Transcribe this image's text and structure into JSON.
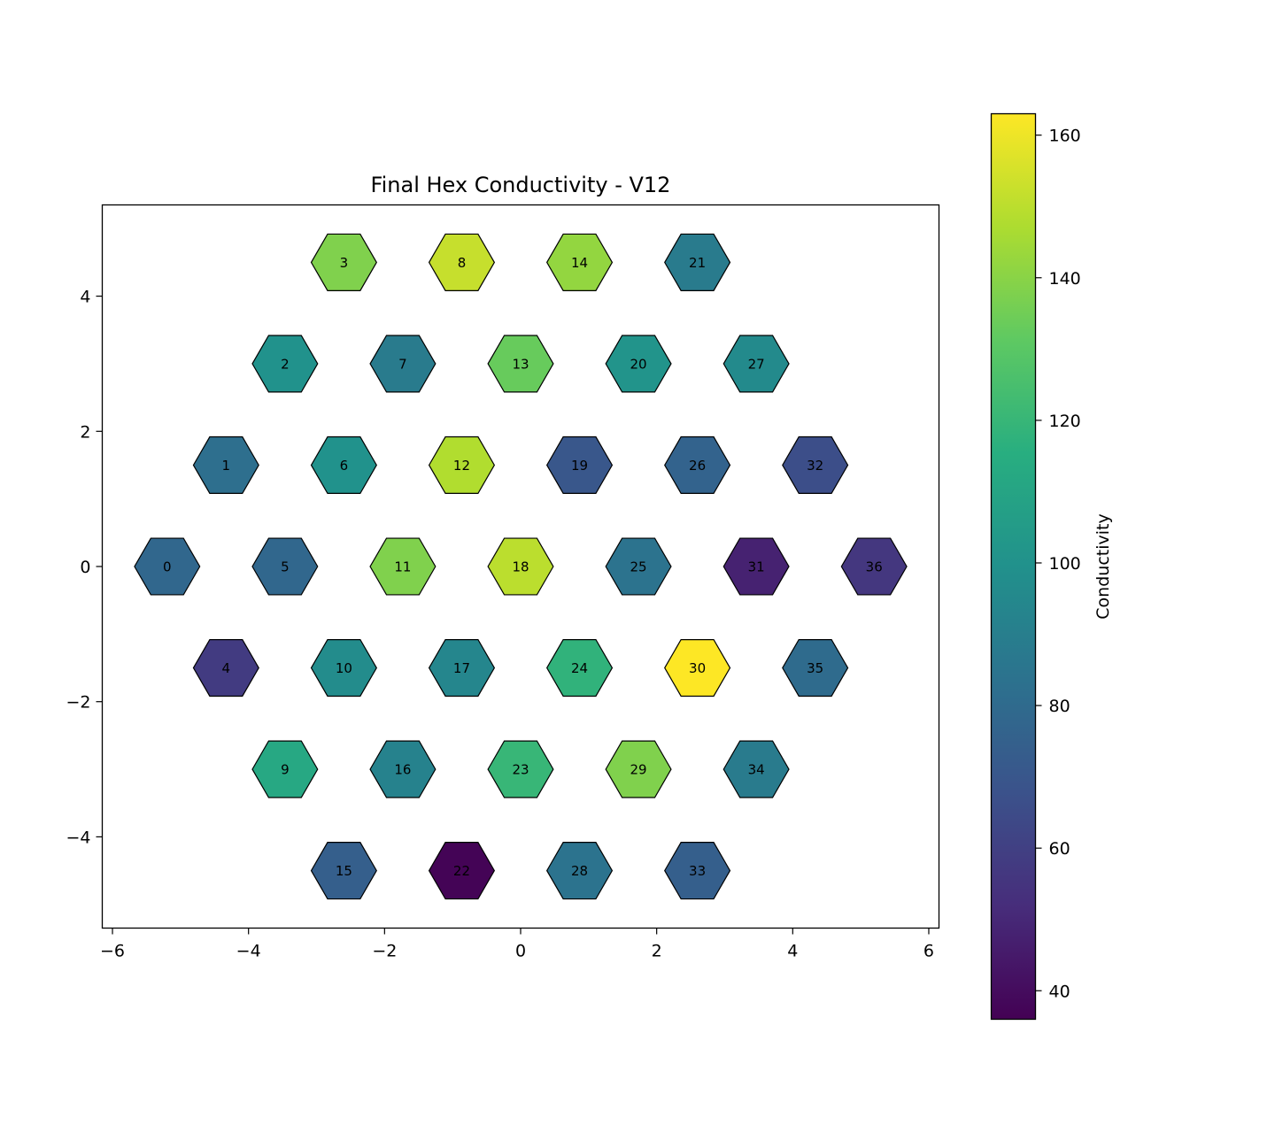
{
  "chart_data": {
    "type": "heatmap",
    "title": "Final Hex Conductivity - V12",
    "xlabel": "",
    "ylabel": "",
    "xlim": [
      -6.15,
      6.15
    ],
    "ylim": [
      -5.35,
      5.35
    ],
    "x_ticks": [
      -6,
      -4,
      -2,
      0,
      2,
      4,
      6
    ],
    "x_tick_labels": [
      "−6",
      "−4",
      "−2",
      "0",
      "2",
      "4",
      "6"
    ],
    "y_ticks": [
      -4,
      -2,
      0,
      2,
      4
    ],
    "y_tick_labels": [
      "−4",
      "−2",
      "0",
      "2",
      "4"
    ],
    "colorbar": {
      "label": "Conductivity",
      "colormap": "viridis",
      "vmin": 36,
      "vmax": 163,
      "ticks": [
        40,
        60,
        80,
        100,
        120,
        140,
        160
      ],
      "tick_labels": [
        "40",
        "60",
        "80",
        "100",
        "120",
        "140",
        "160"
      ]
    },
    "cells": [
      {
        "id": "0",
        "x": -5.196,
        "y": 0.0,
        "value": 78
      },
      {
        "id": "1",
        "x": -4.33,
        "y": 1.5,
        "value": 82
      },
      {
        "id": "2",
        "x": -3.464,
        "y": 3.0,
        "value": 100
      },
      {
        "id": "3",
        "x": -2.598,
        "y": 4.5,
        "value": 138
      },
      {
        "id": "4",
        "x": -4.33,
        "y": -1.5,
        "value": 58
      },
      {
        "id": "5",
        "x": -3.464,
        "y": 0.0,
        "value": 78
      },
      {
        "id": "6",
        "x": -2.598,
        "y": 1.5,
        "value": 100
      },
      {
        "id": "7",
        "x": -1.732,
        "y": 3.0,
        "value": 88
      },
      {
        "id": "8",
        "x": -0.866,
        "y": 4.5,
        "value": 152
      },
      {
        "id": "9",
        "x": -3.464,
        "y": -3.0,
        "value": 112
      },
      {
        "id": "10",
        "x": -2.598,
        "y": -1.5,
        "value": 97
      },
      {
        "id": "11",
        "x": -1.732,
        "y": 0.0,
        "value": 138
      },
      {
        "id": "12",
        "x": -0.866,
        "y": 1.5,
        "value": 148
      },
      {
        "id": "13",
        "x": 0.0,
        "y": 3.0,
        "value": 133
      },
      {
        "id": "14",
        "x": 0.866,
        "y": 4.5,
        "value": 142
      },
      {
        "id": "15",
        "x": -2.598,
        "y": -4.5,
        "value": 74
      },
      {
        "id": "16",
        "x": -1.732,
        "y": -3.0,
        "value": 92
      },
      {
        "id": "17",
        "x": -0.866,
        "y": -1.5,
        "value": 94
      },
      {
        "id": "18",
        "x": 0.0,
        "y": 0.0,
        "value": 150
      },
      {
        "id": "19",
        "x": 0.866,
        "y": 1.5,
        "value": 70
      },
      {
        "id": "20",
        "x": 1.732,
        "y": 3.0,
        "value": 101
      },
      {
        "id": "21",
        "x": 2.598,
        "y": 4.5,
        "value": 88
      },
      {
        "id": "22",
        "x": -0.866,
        "y": -4.5,
        "value": 37
      },
      {
        "id": "23",
        "x": 0.0,
        "y": -3.0,
        "value": 120
      },
      {
        "id": "24",
        "x": 0.866,
        "y": -1.5,
        "value": 118
      },
      {
        "id": "25",
        "x": 1.732,
        "y": 0.0,
        "value": 84
      },
      {
        "id": "26",
        "x": 2.598,
        "y": 1.5,
        "value": 76
      },
      {
        "id": "27",
        "x": 3.464,
        "y": 3.0,
        "value": 96
      },
      {
        "id": "28",
        "x": 0.866,
        "y": -4.5,
        "value": 84
      },
      {
        "id": "29",
        "x": 1.732,
        "y": -3.0,
        "value": 138
      },
      {
        "id": "30",
        "x": 2.598,
        "y": -1.5,
        "value": 163
      },
      {
        "id": "31",
        "x": 3.464,
        "y": 0.0,
        "value": 48
      },
      {
        "id": "32",
        "x": 4.33,
        "y": 1.5,
        "value": 66
      },
      {
        "id": "33",
        "x": 2.598,
        "y": -4.5,
        "value": 74
      },
      {
        "id": "34",
        "x": 3.464,
        "y": -3.0,
        "value": 88
      },
      {
        "id": "35",
        "x": 4.33,
        "y": -1.5,
        "value": 80
      },
      {
        "id": "36",
        "x": 5.196,
        "y": 0.0,
        "value": 56
      }
    ]
  }
}
